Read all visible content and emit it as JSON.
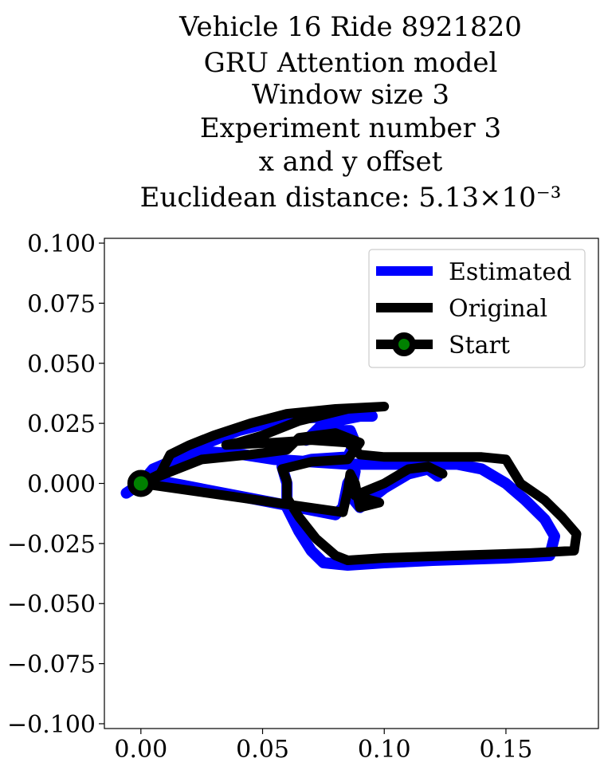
{
  "chart_data": {
    "type": "line",
    "title_lines": [
      "Vehicle 16 Ride 8921820",
      "GRU Attention model",
      "Window size 3",
      "Experiment number 3",
      "x and y offset",
      "Euclidean distance: 5.13×10⁻³"
    ],
    "xlabel": "",
    "ylabel": "",
    "xlim": [
      -0.015,
      0.188
    ],
    "ylim": [
      -0.102,
      0.102
    ],
    "xticks": [
      0.0,
      0.05,
      0.1,
      0.15
    ],
    "xtick_labels": [
      "0.00",
      "0.05",
      "0.10",
      "0.15"
    ],
    "yticks": [
      0.1,
      0.075,
      0.05,
      0.025,
      0.0,
      -0.025,
      -0.05,
      -0.075,
      -0.1
    ],
    "ytick_labels": [
      "0.100",
      "0.075",
      "0.050",
      "0.025",
      "0.000",
      "−0.025",
      "−0.050",
      "−0.075",
      "−0.100"
    ],
    "grid": false,
    "legend_position": "top-right",
    "series": [
      {
        "name": "Estimated",
        "color": "#0000ff",
        "points": [
          [
            -0.006,
            -0.004
          ],
          [
            0.0,
            0.0
          ],
          [
            0.005,
            0.006
          ],
          [
            0.012,
            0.009
          ],
          [
            0.02,
            0.011
          ],
          [
            0.03,
            0.013
          ],
          [
            0.042,
            0.012
          ],
          [
            0.055,
            0.01
          ],
          [
            0.07,
            0.009
          ],
          [
            0.085,
            0.008
          ],
          [
            0.1,
            0.008
          ],
          [
            0.115,
            0.008
          ],
          [
            0.13,
            0.008
          ],
          [
            0.14,
            0.006
          ],
          [
            0.15,
            0.0
          ],
          [
            0.158,
            -0.007
          ],
          [
            0.166,
            -0.015
          ],
          [
            0.17,
            -0.022
          ],
          [
            0.168,
            -0.03
          ],
          [
            0.15,
            -0.031
          ],
          [
            0.12,
            -0.032
          ],
          [
            0.1,
            -0.033
          ],
          [
            0.085,
            -0.034
          ],
          [
            0.075,
            -0.033
          ],
          [
            0.07,
            -0.028
          ],
          [
            0.065,
            -0.02
          ],
          [
            0.06,
            -0.01
          ],
          [
            0.06,
            0.0
          ],
          [
            0.058,
            0.007
          ],
          [
            0.07,
            0.01
          ],
          [
            0.085,
            0.011
          ],
          [
            0.088,
            0.017
          ],
          [
            0.086,
            0.022
          ],
          [
            0.075,
            0.022
          ],
          [
            0.068,
            0.018
          ],
          [
            0.075,
            0.025
          ],
          [
            0.09,
            0.028
          ],
          [
            0.095,
            0.028
          ],
          [
            0.085,
            0.028
          ],
          [
            0.06,
            0.027
          ],
          [
            0.04,
            0.022
          ],
          [
            0.02,
            0.014
          ],
          [
            0.01,
            0.007
          ],
          [
            0.003,
            0.002
          ],
          [
            0.08,
            -0.013
          ],
          [
            0.083,
            -0.01
          ],
          [
            0.085,
            0.0
          ],
          [
            0.088,
            0.005
          ],
          [
            0.086,
            -0.005
          ],
          [
            0.09,
            -0.01
          ],
          [
            0.1,
            -0.002
          ],
          [
            0.11,
            0.004
          ],
          [
            0.118,
            0.006
          ],
          [
            0.122,
            0.003
          ]
        ]
      },
      {
        "name": "Original",
        "color": "#000000",
        "points": [
          [
            0.0,
            0.0
          ],
          [
            0.008,
            0.004
          ],
          [
            0.012,
            0.012
          ],
          [
            0.02,
            0.016
          ],
          [
            0.03,
            0.02
          ],
          [
            0.045,
            0.025
          ],
          [
            0.06,
            0.029
          ],
          [
            0.08,
            0.031
          ],
          [
            0.1,
            0.032
          ],
          [
            0.085,
            0.031
          ],
          [
            0.065,
            0.026
          ],
          [
            0.05,
            0.02
          ],
          [
            0.04,
            0.017
          ],
          [
            0.035,
            0.016
          ],
          [
            0.055,
            0.017
          ],
          [
            0.07,
            0.018
          ],
          [
            0.085,
            0.017
          ],
          [
            0.09,
            0.012
          ],
          [
            0.1,
            0.011
          ],
          [
            0.12,
            0.011
          ],
          [
            0.14,
            0.011
          ],
          [
            0.15,
            0.01
          ],
          [
            0.156,
            0.0
          ],
          [
            0.166,
            -0.007
          ],
          [
            0.173,
            -0.014
          ],
          [
            0.179,
            -0.021
          ],
          [
            0.178,
            -0.028
          ],
          [
            0.16,
            -0.029
          ],
          [
            0.13,
            -0.03
          ],
          [
            0.1,
            -0.031
          ],
          [
            0.085,
            -0.032
          ],
          [
            0.08,
            -0.03
          ],
          [
            0.072,
            -0.023
          ],
          [
            0.065,
            -0.014
          ],
          [
            0.06,
            -0.006
          ],
          [
            0.06,
            0.001
          ],
          [
            0.058,
            0.006
          ],
          [
            0.07,
            0.009
          ],
          [
            0.085,
            0.01
          ],
          [
            0.09,
            0.017
          ],
          [
            0.08,
            0.021
          ],
          [
            0.065,
            0.019
          ],
          [
            0.06,
            0.014
          ],
          [
            0.045,
            0.012
          ],
          [
            0.025,
            0.01
          ],
          [
            0.01,
            0.004
          ],
          [
            0.0,
            0.0
          ],
          [
            0.083,
            -0.012
          ],
          [
            0.085,
            -0.003
          ],
          [
            0.086,
            0.004
          ],
          [
            0.088,
            0.0
          ],
          [
            0.09,
            -0.01
          ],
          [
            0.098,
            -0.008
          ],
          [
            0.088,
            -0.005
          ],
          [
            0.1,
            0.0
          ],
          [
            0.11,
            0.006
          ],
          [
            0.118,
            0.007
          ],
          [
            0.124,
            0.004
          ]
        ]
      }
    ],
    "start_point": {
      "name": "Start",
      "x": 0.0,
      "y": 0.0,
      "marker_color": "#008000",
      "edge_color": "#000000"
    }
  }
}
